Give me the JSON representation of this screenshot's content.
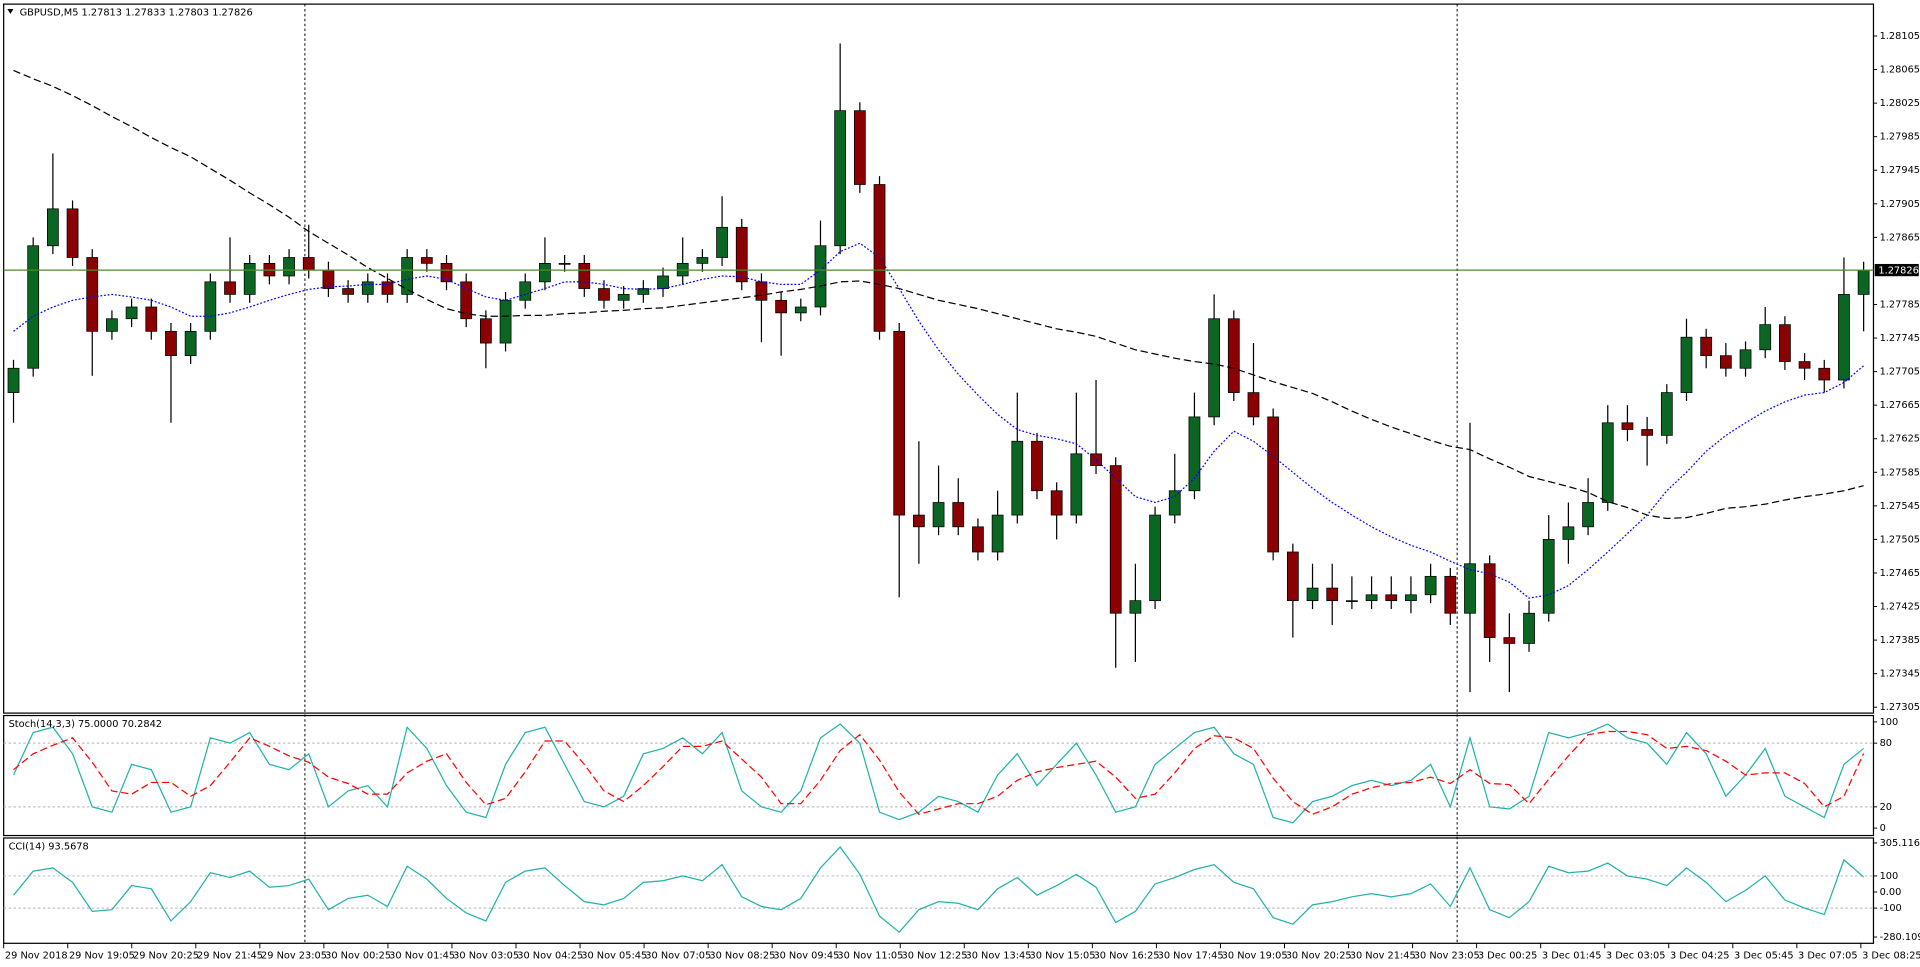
{
  "chart_data": [
    {
      "type": "candlestick",
      "title": "GBPUSD,M5  1.27813 1.27833 1.27803 1.27826",
      "up_color": "#0b6623",
      "down_color": "#8b0000",
      "wick_color": "#000000",
      "open": [
        1.2768,
        1.27709,
        1.27855,
        1.27899,
        1.27841,
        1.27753,
        1.27768,
        1.27782,
        1.27753,
        1.27724,
        1.27753,
        1.27812,
        1.27797,
        1.27834,
        1.27819,
        1.27841,
        1.27826,
        1.27804,
        1.27797,
        1.27812,
        1.27797,
        1.27841,
        1.27834,
        1.27812,
        1.27768,
        1.27739,
        1.2779,
        1.27812,
        1.27834,
        1.27834,
        1.27804,
        1.2779,
        1.27797,
        1.27804,
        1.27819,
        1.27834,
        1.27841,
        1.27877,
        1.27812,
        1.2779,
        1.27775,
        1.27782,
        1.27855,
        1.28016,
        1.27928,
        1.27753,
        1.27534,
        1.2752,
        1.27549,
        1.2752,
        1.2749,
        1.27534,
        1.27622,
        1.27563,
        1.27534,
        1.27607,
        1.27593,
        1.27417,
        1.27432,
        1.27534,
        1.27563,
        1.27651,
        1.27768,
        1.2768,
        1.27651,
        1.2749,
        1.27432,
        1.27447,
        1.27432,
        1.27432,
        1.27439,
        1.27432,
        1.27439,
        1.27461,
        1.27417,
        1.27476,
        1.27388,
        1.27381,
        1.27417,
        1.27505,
        1.2752,
        1.27549,
        1.27644,
        1.27636,
        1.27629,
        1.2768,
        1.27746,
        1.27724,
        1.27709,
        1.27731,
        1.27761,
        1.27717,
        1.27709,
        1.27695,
        1.27797
      ],
      "high": [
        1.27719,
        1.27865,
        1.27965,
        1.27909,
        1.27851,
        1.27778,
        1.27792,
        1.27792,
        1.27763,
        1.27763,
        1.27822,
        1.27865,
        1.27844,
        1.27844,
        1.27851,
        1.2788,
        1.27836,
        1.27814,
        1.27822,
        1.27822,
        1.27851,
        1.27851,
        1.27844,
        1.27822,
        1.27778,
        1.278,
        1.27822,
        1.27865,
        1.27844,
        1.27844,
        1.27814,
        1.27807,
        1.27814,
        1.27829,
        1.27865,
        1.27851,
        1.27914,
        1.27887,
        1.27822,
        1.278,
        1.27792,
        1.27885,
        1.28096,
        1.28026,
        1.27938,
        1.27763,
        1.27622,
        1.27593,
        1.27578,
        1.2753,
        1.27563,
        1.2768,
        1.27632,
        1.27573,
        1.2768,
        1.27695,
        1.27603,
        1.27476,
        1.27544,
        1.27607,
        1.2768,
        1.27797,
        1.27778,
        1.27739,
        1.27661,
        1.275,
        1.27476,
        1.27476,
        1.27461,
        1.27461,
        1.27461,
        1.27461,
        1.27476,
        1.27471,
        1.27644,
        1.27486,
        1.27417,
        1.27432,
        1.27534,
        1.27549,
        1.27578,
        1.27665,
        1.27665,
        1.27651,
        1.2769,
        1.27768,
        1.27756,
        1.27739,
        1.27741,
        1.27782,
        1.27771,
        1.27727,
        1.27719,
        1.27841,
        1.27836
      ],
      "low": [
        1.27644,
        1.27699,
        1.27845,
        1.27831,
        1.277,
        1.27743,
        1.27758,
        1.27743,
        1.27644,
        1.27714,
        1.27743,
        1.27787,
        1.27787,
        1.27809,
        1.27809,
        1.27816,
        1.27794,
        1.27787,
        1.27787,
        1.27787,
        1.27787,
        1.27824,
        1.27802,
        1.27758,
        1.27709,
        1.27729,
        1.2778,
        1.27802,
        1.27824,
        1.27794,
        1.2778,
        1.2778,
        1.27787,
        1.27794,
        1.27809,
        1.27824,
        1.27831,
        1.27802,
        1.2774,
        1.27724,
        1.27765,
        1.27772,
        1.27845,
        1.27918,
        1.27743,
        1.27436,
        1.27476,
        1.2751,
        1.2751,
        1.2748,
        1.2748,
        1.27524,
        1.27553,
        1.27505,
        1.27524,
        1.27583,
        1.27352,
        1.27359,
        1.27422,
        1.27524,
        1.27553,
        1.27641,
        1.2767,
        1.27641,
        1.2748,
        1.27388,
        1.27422,
        1.27403,
        1.27422,
        1.27422,
        1.27422,
        1.27417,
        1.27429,
        1.27403,
        1.27323,
        1.27359,
        1.27323,
        1.27371,
        1.27407,
        1.27476,
        1.2751,
        1.27539,
        1.27622,
        1.27593,
        1.27619,
        1.2767,
        1.27709,
        1.27699,
        1.27699,
        1.27721,
        1.27707,
        1.27695,
        1.2768,
        1.27685,
        1.27753
      ],
      "close": [
        1.27709,
        1.27855,
        1.27899,
        1.27841,
        1.27753,
        1.27768,
        1.27782,
        1.27753,
        1.27724,
        1.27753,
        1.27812,
        1.27797,
        1.27834,
        1.27819,
        1.27841,
        1.27826,
        1.27804,
        1.27797,
        1.27812,
        1.27797,
        1.27841,
        1.27834,
        1.27812,
        1.27768,
        1.27739,
        1.2779,
        1.27812,
        1.27834,
        1.27834,
        1.27804,
        1.2779,
        1.27797,
        1.27804,
        1.27819,
        1.27834,
        1.27841,
        1.27877,
        1.27812,
        1.2779,
        1.27775,
        1.27782,
        1.27855,
        1.28016,
        1.27928,
        1.27753,
        1.27534,
        1.2752,
        1.27549,
        1.2752,
        1.2749,
        1.27534,
        1.27622,
        1.27563,
        1.27534,
        1.27607,
        1.27593,
        1.27417,
        1.27432,
        1.27534,
        1.27563,
        1.27651,
        1.27768,
        1.2768,
        1.27651,
        1.2749,
        1.27432,
        1.27447,
        1.27432,
        1.27432,
        1.27439,
        1.27432,
        1.27439,
        1.27461,
        1.27417,
        1.27476,
        1.27388,
        1.27381,
        1.27417,
        1.27505,
        1.2752,
        1.27549,
        1.27644,
        1.27636,
        1.27629,
        1.2768,
        1.27746,
        1.27724,
        1.27709,
        1.27731,
        1.27761,
        1.27717,
        1.27709,
        1.27695,
        1.27797,
        1.27826
      ],
      "series": [
        {
          "color": "#000000",
          "style": "dashed",
          "values": [
            1.28064,
            1.28054,
            1.28045,
            1.28034,
            1.28022,
            1.28009,
            1.27997,
            1.27984,
            1.27972,
            1.27961,
            1.27947,
            1.27933,
            1.27918,
            1.27904,
            1.27889,
            1.27872,
            1.27858,
            1.27844,
            1.27829,
            1.27816,
            1.27803,
            1.27791,
            1.2778,
            1.27774,
            1.27771,
            1.27771,
            1.27772,
            1.27772,
            1.27774,
            1.27775,
            1.27777,
            1.27778,
            1.2778,
            1.27781,
            1.27784,
            1.27787,
            1.2779,
            1.27793,
            1.27796,
            1.278,
            1.27803,
            1.27807,
            1.27812,
            1.27813,
            1.27809,
            1.27804,
            1.27797,
            1.2779,
            1.27785,
            1.2778,
            1.27774,
            1.27768,
            1.27762,
            1.27756,
            1.27752,
            1.27747,
            1.27739,
            1.27731,
            1.27726,
            1.27721,
            1.27717,
            1.27714,
            1.27709,
            1.27701,
            1.27693,
            1.27686,
            1.27679,
            1.27669,
            1.27658,
            1.27648,
            1.27639,
            1.27631,
            1.27623,
            1.27616,
            1.27612,
            1.27601,
            1.27591,
            1.2758,
            1.27574,
            1.27568,
            1.27561,
            1.2755,
            1.27543,
            1.27534,
            1.2753,
            1.27531,
            1.27536,
            1.27542,
            1.27544,
            1.27547,
            1.27552,
            1.27556,
            1.27559,
            1.27563,
            1.27569
          ]
        },
        {
          "color": "#0000ff",
          "style": "dotted",
          "values": [
            1.27753,
            1.27771,
            1.27782,
            1.2779,
            1.27794,
            1.27797,
            1.27794,
            1.2779,
            1.27782,
            1.27771,
            1.27771,
            1.27775,
            1.27782,
            1.2779,
            1.27797,
            1.27803,
            1.27806,
            1.27807,
            1.27809,
            1.27809,
            1.27815,
            1.27819,
            1.27815,
            1.27804,
            1.27794,
            1.2779,
            1.27797,
            1.27804,
            1.27812,
            1.27812,
            1.27809,
            1.27804,
            1.27803,
            1.27804,
            1.27809,
            1.27815,
            1.27819,
            1.27818,
            1.27812,
            1.27809,
            1.27809,
            1.27826,
            1.27848,
            1.27858,
            1.27841,
            1.27804,
            1.27765,
            1.27731,
            1.27702,
            1.27677,
            1.27654,
            1.27636,
            1.27629,
            1.27625,
            1.27619,
            1.276,
            1.27578,
            1.27556,
            1.27549,
            1.27556,
            1.27578,
            1.2761,
            1.27634,
            1.27622,
            1.27604,
            1.27585,
            1.27566,
            1.27549,
            1.27534,
            1.2752,
            1.27508,
            1.27498,
            1.2749,
            1.27479,
            1.27469,
            1.27464,
            1.27454,
            1.27435,
            1.27439,
            1.2745,
            1.27469,
            1.2749,
            1.27512,
            1.27534,
            1.27563,
            1.27585,
            1.2761,
            1.27629,
            1.27644,
            1.27658,
            1.27669,
            1.27677,
            1.2768,
            1.27692,
            1.27712
          ]
        }
      ],
      "current_price": 1.27826,
      "current_price_color": "#4f8a2e",
      "ylim": [
        1.27298,
        1.28143
      ],
      "yticks": [
        1.28105,
        1.28065,
        1.28025,
        1.27985,
        1.27945,
        1.27905,
        1.27865,
        1.27785,
        1.27745,
        1.27705,
        1.27665,
        1.27625,
        1.27585,
        1.27545,
        1.27505,
        1.27465,
        1.27425,
        1.27385,
        1.27345,
        1.27305
      ],
      "time_labels": [
        "29 Nov 2018",
        "29 Nov 19:05",
        "29 Nov 20:25",
        "29 Nov 21:45",
        "29 Nov 23:05",
        "30 Nov 00:25",
        "30 Nov 01:45",
        "30 Nov 03:05",
        "30 Nov 04:25",
        "30 Nov 05:45",
        "30 Nov 07:05",
        "30 Nov 08:25",
        "30 Nov 09:45",
        "30 Nov 11:05",
        "30 Nov 12:25",
        "30 Nov 13:45",
        "30 Nov 15:05",
        "30 Nov 16:25",
        "30 Nov 17:45",
        "30 Nov 19:05",
        "30 Nov 20:25",
        "30 Nov 21:45",
        "30 Nov 23:05",
        "3 Dec 00:25",
        "3 Dec 01:45",
        "3 Dec 03:05",
        "3 Dec 04:25",
        "3 Dec 05:45",
        "3 Dec 07:05",
        "3 Dec 08:25"
      ]
    },
    {
      "type": "line",
      "title": "Stoch(14,3,3) 75.0000 70.2842",
      "series": [
        {
          "color": "#20b2aa",
          "style": "solid",
          "values": [
            50,
            90,
            95,
            70,
            20,
            15,
            60,
            55,
            15,
            20,
            85,
            80,
            90,
            60,
            55,
            70,
            20,
            35,
            40,
            20,
            95,
            75,
            40,
            15,
            10,
            60,
            90,
            95,
            60,
            25,
            20,
            30,
            70,
            75,
            85,
            70,
            90,
            35,
            20,
            15,
            35,
            85,
            98,
            80,
            15,
            8,
            15,
            30,
            25,
            15,
            50,
            70,
            40,
            60,
            80,
            50,
            15,
            20,
            60,
            75,
            90,
            95,
            70,
            60,
            10,
            5,
            25,
            30,
            40,
            45,
            40,
            45,
            60,
            20,
            85,
            20,
            18,
            30,
            90,
            85,
            90,
            98,
            85,
            80,
            60,
            90,
            70,
            30,
            50,
            75,
            30,
            20,
            10,
            60,
            75
          ]
        },
        {
          "color": "#ff0000",
          "style": "dashed",
          "values": [
            55,
            70,
            78,
            85,
            62,
            35,
            32,
            43,
            43,
            30,
            40,
            62,
            85,
            77,
            68,
            62,
            48,
            42,
            32,
            32,
            52,
            63,
            70,
            43,
            22,
            28,
            53,
            82,
            82,
            60,
            35,
            25,
            40,
            58,
            77,
            77,
            82,
            65,
            48,
            23,
            23,
            45,
            73,
            88,
            64,
            34,
            13,
            18,
            23,
            23,
            30,
            45,
            53,
            57,
            60,
            63,
            48,
            28,
            32,
            52,
            75,
            87,
            85,
            75,
            47,
            25,
            13,
            20,
            32,
            38,
            42,
            43,
            48,
            42,
            55,
            42,
            41,
            23,
            46,
            68,
            88,
            91,
            91,
            88,
            75,
            77,
            73,
            63,
            50,
            52,
            52,
            42,
            20,
            30,
            70.2842
          ]
        }
      ],
      "levels": [
        80,
        20
      ],
      "ylim": [
        -7,
        106
      ],
      "yticks": [
        100,
        80,
        20,
        0
      ]
    },
    {
      "type": "line",
      "title": "CCI(14) 93.5678",
      "series": [
        {
          "color": "#20b2aa",
          "style": "solid",
          "values": [
            -20,
            130,
            150,
            60,
            -120,
            -110,
            40,
            20,
            -180,
            -60,
            120,
            90,
            130,
            30,
            40,
            80,
            -110,
            -40,
            -20,
            -90,
            160,
            80,
            -40,
            -130,
            -180,
            60,
            130,
            150,
            40,
            -60,
            -80,
            -40,
            60,
            70,
            100,
            70,
            170,
            -30,
            -90,
            -110,
            -40,
            150,
            280,
            110,
            -150,
            -250,
            -110,
            -60,
            -70,
            -110,
            20,
            90,
            -20,
            40,
            110,
            30,
            -190,
            -120,
            50,
            90,
            140,
            170,
            60,
            20,
            -160,
            -200,
            -80,
            -60,
            -30,
            -10,
            -30,
            -10,
            50,
            -90,
            150,
            -110,
            -160,
            -60,
            160,
            120,
            130,
            180,
            100,
            80,
            40,
            150,
            60,
            -60,
            10,
            100,
            -50,
            -100,
            -140,
            200,
            93.5678
          ]
        }
      ],
      "levels": [
        100,
        -100
      ],
      "ylim": [
        -319,
        336
      ],
      "yticks": [
        305.1163,
        100,
        {
          "value": 0,
          "label": "0.00"
        },
        -100,
        -280.1094
      ]
    }
  ]
}
